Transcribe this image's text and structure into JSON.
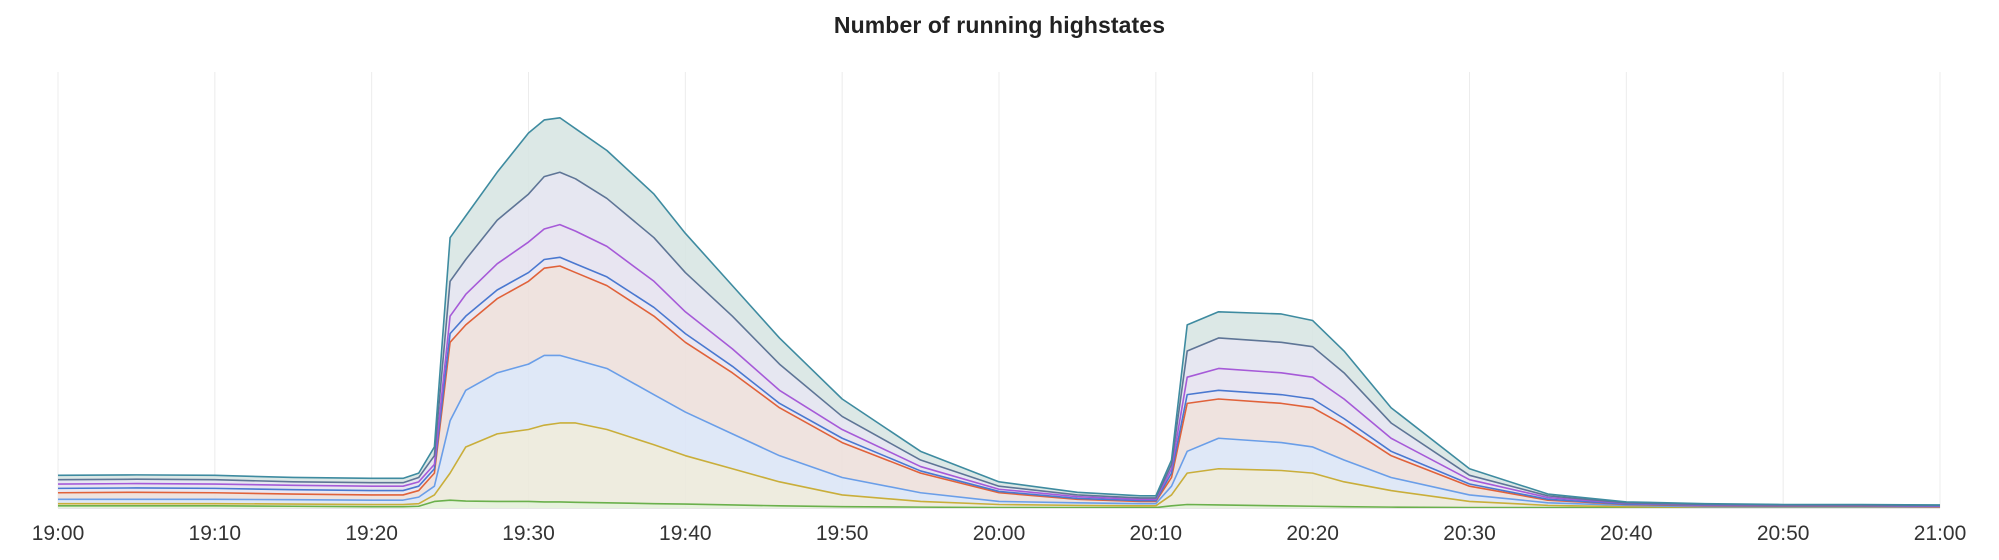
{
  "panel": {
    "title": "Number of running highstates"
  },
  "chart_data": {
    "type": "area",
    "title": "Number of running highstates",
    "stacked": true,
    "legend": "none",
    "grid": true,
    "x_label": "",
    "y_label": "",
    "x_ticks": [
      "19:00",
      "19:10",
      "19:20",
      "19:30",
      "19:40",
      "19:50",
      "20:00",
      "20:10",
      "20:20",
      "20:30",
      "20:40",
      "20:50",
      "21:00"
    ],
    "x": [
      "19:00",
      "19:05",
      "19:10",
      "19:15",
      "19:20",
      "19:22",
      "19:23",
      "19:24",
      "19:25",
      "19:26",
      "19:28",
      "19:30",
      "19:31",
      "19:32",
      "19:33",
      "19:35",
      "19:38",
      "19:40",
      "19:43",
      "19:46",
      "19:50",
      "19:55",
      "20:00",
      "20:05",
      "20:09",
      "20:10",
      "20:11",
      "20:12",
      "20:14",
      "20:18",
      "20:20",
      "20:22",
      "20:25",
      "20:30",
      "20:35",
      "20:40",
      "20:45",
      "20:50",
      "20:55",
      "21:00"
    ],
    "ylim": [
      0,
      100
    ],
    "y_ticks_shown": false,
    "series": [
      {
        "color": "#6ab04c",
        "fill": "#e3f1d8",
        "values": [
          0.5,
          0.5,
          0.5,
          0.4,
          0.3,
          0.3,
          0.4,
          1.5,
          1.8,
          1.6,
          1.5,
          1.5,
          1.4,
          1.4,
          1.3,
          1.2,
          1.0,
          0.9,
          0.7,
          0.5,
          0.3,
          0.2,
          0.1,
          0.1,
          0.1,
          0.1,
          0.5,
          0.8,
          0.7,
          0.5,
          0.4,
          0.3,
          0.2,
          0.1,
          0.1,
          0.1,
          0.1,
          0.1,
          0.1,
          0.1
        ]
      },
      {
        "color": "#c9ae3a",
        "fill": "#eceadb",
        "values": [
          1.0,
          1.0,
          1.0,
          0.9,
          0.8,
          0.8,
          1.0,
          3.0,
          8.0,
          14.0,
          17.0,
          18.0,
          19.0,
          19.5,
          19.5,
          18.0,
          14.5,
          12.0,
          9.0,
          6.0,
          3.0,
          1.5,
          0.8,
          0.6,
          0.5,
          0.5,
          3.0,
          8.0,
          9.0,
          8.6,
          8.0,
          6.0,
          4.0,
          1.5,
          0.6,
          0.3,
          0.2,
          0.2,
          0.2,
          0.1
        ]
      },
      {
        "color": "#6a9ee8",
        "fill": "#dbe6f6",
        "values": [
          2.0,
          2.0,
          2.0,
          1.9,
          1.8,
          1.8,
          2.5,
          5.0,
          20.0,
          27.0,
          31.0,
          33.0,
          35.0,
          35.0,
          34.0,
          32.0,
          26.0,
          22.0,
          17.0,
          12.0,
          7.0,
          3.5,
          1.5,
          1.2,
          1.0,
          1.0,
          5.0,
          13.0,
          16.0,
          15.0,
          14.0,
          11.0,
          7.0,
          3.0,
          1.2,
          0.6,
          0.3,
          0.3,
          0.3,
          0.2
        ]
      },
      {
        "color": "#e0623a",
        "fill": "#ede0dc",
        "values": [
          3.5,
          3.6,
          3.5,
          3.2,
          3.0,
          3.0,
          4.0,
          8.0,
          38.0,
          42.0,
          48.0,
          52.0,
          55.0,
          55.5,
          54.0,
          51.0,
          44.0,
          38.0,
          31.0,
          23.0,
          15.0,
          8.0,
          3.5,
          2.0,
          1.5,
          1.5,
          7.0,
          24.0,
          25.0,
          24.0,
          23.0,
          19.0,
          12.0,
          5.0,
          1.8,
          0.8,
          0.5,
          0.4,
          0.4,
          0.3
        ]
      },
      {
        "color": "#4a78d0",
        "fill": "#e8e6f2",
        "values": [
          4.5,
          4.6,
          4.5,
          4.2,
          4.0,
          4.0,
          5.0,
          9.0,
          40.0,
          44.0,
          50.0,
          54.0,
          57.0,
          57.5,
          56.0,
          53.0,
          46.0,
          40.0,
          32.5,
          24.0,
          16.0,
          8.5,
          3.8,
          2.2,
          1.7,
          1.7,
          8.0,
          26.0,
          27.0,
          26.0,
          25.0,
          20.5,
          13.0,
          5.5,
          2.0,
          0.9,
          0.6,
          0.5,
          0.5,
          0.4
        ]
      },
      {
        "color": "#a65ad8",
        "fill": "#e5e2f0",
        "values": [
          5.5,
          5.6,
          5.5,
          5.2,
          5.0,
          5.0,
          6.0,
          10.0,
          44.0,
          49.0,
          56.0,
          61.0,
          64.0,
          65.0,
          63.5,
          60.0,
          52.0,
          45.0,
          36.5,
          27.0,
          18.0,
          9.5,
          4.3,
          2.6,
          2.0,
          2.0,
          9.0,
          30.0,
          32.0,
          31.0,
          30.0,
          25.0,
          16.0,
          6.5,
          2.4,
          1.1,
          0.7,
          0.6,
          0.6,
          0.5
        ]
      },
      {
        "color": "#5e7596",
        "fill": "#e3e4ef",
        "values": [
          6.5,
          6.6,
          6.5,
          6.0,
          5.8,
          5.8,
          7.0,
          12.0,
          52.0,
          57.0,
          66.0,
          72.0,
          76.0,
          77.0,
          75.5,
          71.0,
          62.0,
          54.0,
          44.0,
          33.0,
          21.0,
          11.0,
          5.0,
          3.0,
          2.3,
          2.3,
          10.0,
          36.0,
          39.0,
          38.0,
          37.0,
          31.0,
          19.5,
          7.5,
          2.8,
          1.2,
          0.8,
          0.7,
          0.7,
          0.6
        ]
      },
      {
        "color": "#3e8ba0",
        "fill": "#d8e6e3",
        "values": [
          7.5,
          7.6,
          7.5,
          7.0,
          6.8,
          6.8,
          8.0,
          14.0,
          62.0,
          67.0,
          77.0,
          86.0,
          89.0,
          89.5,
          87.0,
          82.0,
          72.0,
          63.0,
          51.0,
          39.0,
          25.0,
          13.0,
          6.0,
          3.6,
          2.8,
          2.8,
          11.0,
          42.0,
          45.0,
          44.5,
          43.0,
          36.0,
          23.0,
          9.0,
          3.2,
          1.4,
          1.0,
          0.8,
          0.8,
          0.7
        ]
      }
    ]
  }
}
